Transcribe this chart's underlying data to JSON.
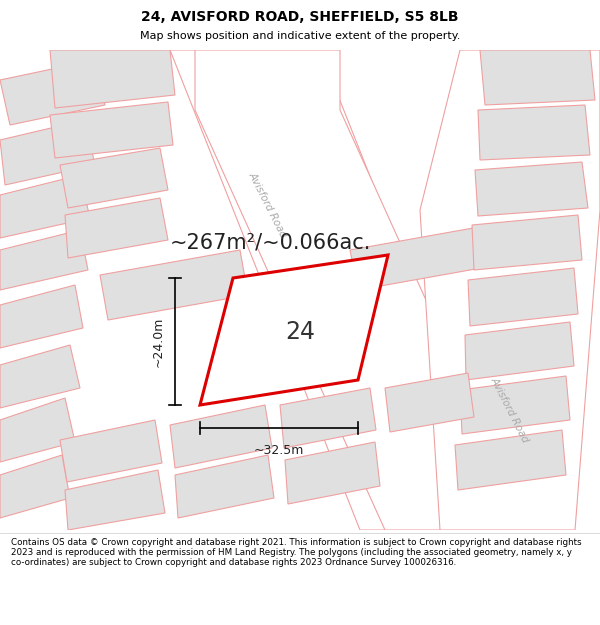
{
  "title_line1": "24, AVISFORD ROAD, SHEFFIELD, S5 8LB",
  "title_line2": "Map shows position and indicative extent of the property.",
  "area_text": "~267m²/~0.066ac.",
  "number_text": "24",
  "dim_width": "~32.5m",
  "dim_height": "~24.0m",
  "road_label_1": "Avisford Road",
  "road_label_2": "Avisford Road",
  "footer_text": "Contains OS data © Crown copyright and database right 2021. This information is subject to Crown copyright and database rights 2023 and is reproduced with the permission of HM Land Registry. The polygons (including the associated geometry, namely x, y co-ordinates) are subject to Crown copyright and database rights 2023 Ordnance Survey 100026316.",
  "bg_color": "#f7f7f7",
  "plot_outline_color": "#dd0000",
  "neighbor_fill": "#e0e0e0",
  "neighbor_stroke": "#f0a0a0",
  "road_stroke": "#f0a0a0",
  "road_fill": "#ffffff",
  "title_bg": "#ffffff",
  "footer_bg": "#ffffff"
}
